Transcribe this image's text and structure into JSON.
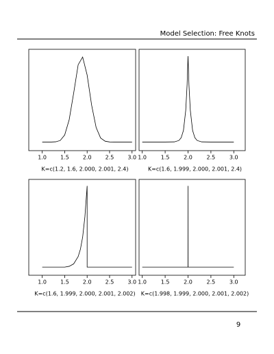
{
  "header": "Model Selection: Free Knots",
  "page_number": "9",
  "chart_data": [
    {
      "type": "line",
      "xlabel": "K=c(1.2, 1.6, 2.000, 2.001, 2.4)",
      "color": "#000000",
      "xlim": [
        0.7,
        3.08
      ],
      "ylim": [
        -0.1,
        1.08
      ],
      "xticks": [
        {
          "value": 1,
          "label": "1.0"
        },
        {
          "value": 1.5,
          "label": "1.5"
        },
        {
          "value": 2,
          "label": "2.0"
        },
        {
          "value": 2.5,
          "label": "2.5"
        },
        {
          "value": 3,
          "label": "3.0"
        }
      ],
      "x": [
        1.0,
        1.1,
        1.2,
        1.3,
        1.4,
        1.5,
        1.6,
        1.7,
        1.8,
        1.9,
        2.0,
        2.1,
        2.2,
        2.3,
        2.4,
        2.5,
        2.6,
        2.7,
        2.8,
        2.9,
        3.0
      ],
      "values": [
        0,
        0,
        0,
        0.003,
        0.018,
        0.082,
        0.26,
        0.57,
        0.9,
        0.99,
        0.78,
        0.43,
        0.17,
        0.047,
        0.01,
        0.001,
        0,
        0,
        0,
        0,
        0
      ]
    },
    {
      "type": "line",
      "xlabel": "K=c(1.6, 1.999, 2.000, 2.001, 2.4)",
      "color": "#000000",
      "xlim": [
        0.93,
        3.25
      ],
      "ylim": [
        -0.1,
        1.08
      ],
      "xticks": [
        {
          "value": 1,
          "label": "1.0"
        },
        {
          "value": 1.5,
          "label": "1.5"
        },
        {
          "value": 2,
          "label": "2.0"
        },
        {
          "value": 2.5,
          "label": "2.5"
        },
        {
          "value": 3,
          "label": "3.0"
        }
      ],
      "x": [
        1.0,
        1.5,
        1.7,
        1.8,
        1.85,
        1.9,
        1.95,
        1.98,
        2.0,
        2.02,
        2.05,
        2.1,
        2.15,
        2.2,
        2.3,
        2.5,
        3.0
      ],
      "values": [
        0,
        0,
        0.002,
        0.018,
        0.05,
        0.135,
        0.37,
        0.67,
        1,
        0.67,
        0.37,
        0.135,
        0.05,
        0.018,
        0.002,
        0,
        0
      ]
    },
    {
      "type": "line",
      "xlabel": "K=c(1.6, 1.999, 2.000, 2.001, 2.002)",
      "color": "#000000",
      "xlim": [
        0.7,
        3.08
      ],
      "ylim": [
        -0.1,
        1.08
      ],
      "xticks": [
        {
          "value": 1,
          "label": "1.0"
        },
        {
          "value": 1.5,
          "label": "1.5"
        },
        {
          "value": 2,
          "label": "2.0"
        },
        {
          "value": 2.5,
          "label": "2.5"
        },
        {
          "value": 3,
          "label": "3.0"
        }
      ],
      "x": [
        1.0,
        1.5,
        1.6,
        1.7,
        1.8,
        1.85,
        1.9,
        1.95,
        2.0,
        2.0,
        3.0
      ],
      "values": [
        0,
        0,
        0.01,
        0.04,
        0.13,
        0.22,
        0.37,
        0.62,
        1,
        0,
        0
      ]
    },
    {
      "type": "line",
      "xlabel": "K=c(1.998, 1.999, 2.000, 2.001, 2.002)",
      "color": "#000000",
      "xlim": [
        0.93,
        3.25
      ],
      "ylim": [
        -0.1,
        1.08
      ],
      "xticks": [
        {
          "value": 1,
          "label": "1.0"
        },
        {
          "value": 1.5,
          "label": "1.5"
        },
        {
          "value": 2,
          "label": "2.0"
        },
        {
          "value": 2.5,
          "label": "2.5"
        },
        {
          "value": 3,
          "label": "3.0"
        }
      ],
      "x": [
        1.0,
        1.999,
        2.0,
        2.001,
        3.0
      ],
      "values": [
        0,
        0,
        1,
        0,
        0
      ]
    }
  ]
}
